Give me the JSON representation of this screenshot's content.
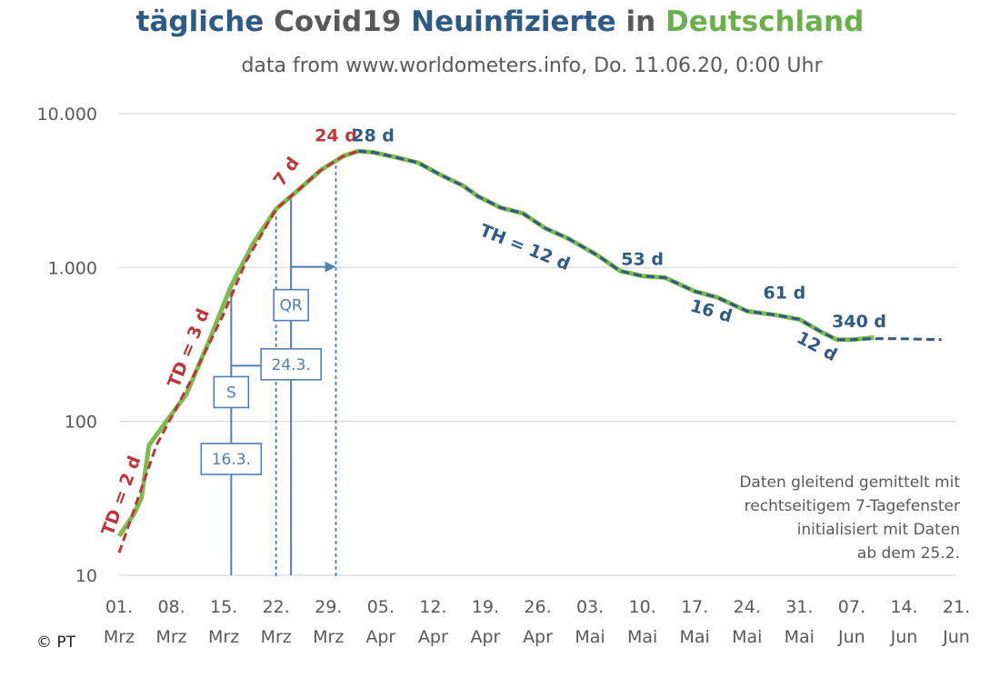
{
  "title": {
    "part1": "tägliche ",
    "part2": "Covid19 ",
    "part3": "Neuinfizierte",
    "part4": " in ",
    "part5": "Deutschland",
    "colors": {
      "blue": "#2e5a87",
      "gray": "#595959",
      "green": "#6ab04c"
    }
  },
  "subtitle": "data from www.worldometers.info, Do. 11.06.20, 0:00 Uhr",
  "copyright": "© PT",
  "note_lines": [
    "Daten gleitend gemittelt mit",
    "rechtseitigem 7-Tagefenster",
    "initialisiert mit Daten",
    "ab dem 25.2."
  ],
  "chart_data": {
    "type": "line",
    "y_scale": "log",
    "ylim": [
      10,
      10000
    ],
    "yticks": [
      10,
      100,
      1000,
      10000
    ],
    "ytick_labels": [
      "10",
      "100",
      "1.000",
      "10.000"
    ],
    "x_start": "2020-03-01",
    "x_end": "2020-06-21",
    "xtick_labels": [
      [
        "01.",
        "Mrz"
      ],
      [
        "08.",
        "Mrz"
      ],
      [
        "15.",
        "Mrz"
      ],
      [
        "22.",
        "Mrz"
      ],
      [
        "29.",
        "Mrz"
      ],
      [
        "05.",
        "Apr"
      ],
      [
        "12.",
        "Apr"
      ],
      [
        "19.",
        "Apr"
      ],
      [
        "26.",
        "Apr"
      ],
      [
        "03.",
        "Mai"
      ],
      [
        "10.",
        "Mai"
      ],
      [
        "17.",
        "Mai"
      ],
      [
        "24.",
        "Mai"
      ],
      [
        "31.",
        "Mai"
      ],
      [
        "07.",
        "Jun"
      ],
      [
        "14.",
        "Jun"
      ],
      [
        "21.",
        "Jun"
      ]
    ],
    "grid": true,
    "series": [
      {
        "color": "#7dbb4e",
        "style": "solid",
        "x": [
          "2020-03-01",
          "2020-03-03",
          "2020-03-04",
          "2020-03-05",
          "2020-03-07",
          "2020-03-10",
          "2020-03-13",
          "2020-03-16",
          "2020-03-19",
          "2020-03-22",
          "2020-03-25",
          "2020-03-28",
          "2020-03-31",
          "2020-04-02",
          "2020-04-04",
          "2020-04-07",
          "2020-04-10",
          "2020-04-13",
          "2020-04-16",
          "2020-04-18",
          "2020-04-21",
          "2020-04-24",
          "2020-04-27",
          "2020-04-30",
          "2020-05-04",
          "2020-05-07",
          "2020-05-10",
          "2020-05-13",
          "2020-05-17",
          "2020-05-20",
          "2020-05-24",
          "2020-05-28",
          "2020-05-31",
          "2020-06-03",
          "2020-06-05",
          "2020-06-07",
          "2020-06-10"
        ],
        "y": [
          18,
          25,
          32,
          70,
          95,
          150,
          330,
          760,
          1450,
          2400,
          3200,
          4300,
          5300,
          5700,
          5600,
          5200,
          4800,
          4000,
          3400,
          2900,
          2450,
          2250,
          1800,
          1550,
          1200,
          950,
          880,
          860,
          700,
          640,
          520,
          490,
          460,
          380,
          340,
          340,
          350
        ]
      },
      {
        "color": "#c0353a",
        "style": "dashed",
        "x": [
          "2020-03-01",
          "2020-03-06",
          "2020-03-11",
          "2020-03-15",
          "2020-03-18",
          "2020-03-22",
          "2020-03-25",
          "2020-03-28",
          "2020-03-31",
          "2020-04-02"
        ],
        "y": [
          14,
          70,
          200,
          500,
          1100,
          2400,
          3200,
          4300,
          5300,
          5700
        ]
      },
      {
        "color": "#2e5a87",
        "style": "dashed",
        "x": [
          "2020-04-02",
          "2020-04-04",
          "2020-04-07",
          "2020-04-10",
          "2020-04-13",
          "2020-04-16",
          "2020-04-18",
          "2020-04-21",
          "2020-04-24",
          "2020-04-27",
          "2020-04-30",
          "2020-05-04",
          "2020-05-07",
          "2020-05-10",
          "2020-05-13",
          "2020-05-17",
          "2020-05-20",
          "2020-05-24",
          "2020-05-28",
          "2020-05-31",
          "2020-06-03",
          "2020-06-05",
          "2020-06-07",
          "2020-06-10",
          "2020-06-13",
          "2020-06-19"
        ],
        "y": [
          5700,
          5600,
          5200,
          4800,
          4000,
          3400,
          2900,
          2450,
          2250,
          1800,
          1550,
          1200,
          950,
          880,
          860,
          700,
          640,
          520,
          490,
          460,
          380,
          340,
          340,
          345,
          345,
          340
        ]
      }
    ],
    "vlines": [
      {
        "date": "2020-03-16",
        "style": "solid",
        "color": "#4f7fb5",
        "y_top": 800
      },
      {
        "date": "2020-03-22",
        "style": "dotted",
        "color": "#4f7fb5",
        "y_top": 2400
      },
      {
        "date": "2020-03-24",
        "style": "solid",
        "color": "#4f7fb5",
        "y_top": 3000
      },
      {
        "date": "2020-03-30",
        "style": "dotted",
        "color": "#4f7fb5",
        "y_top": 5300
      }
    ],
    "annotations": [
      {
        "text": "TD = 2 d",
        "color": "#c0353a",
        "date": "2020-03-02",
        "y": 32,
        "rotate": -70
      },
      {
        "text": "TD = 3 d",
        "color": "#c0353a",
        "date": "2020-03-11",
        "y": 290,
        "rotate": -68
      },
      {
        "text": "7 d",
        "color": "#c0353a",
        "date": "2020-03-24",
        "y": 4000,
        "rotate": -55
      },
      {
        "text": "24 d",
        "color": "#c0353a",
        "date": "2020-03-30",
        "y": 6600,
        "rotate": 0
      },
      {
        "text": "28 d",
        "color": "#2e5a87",
        "date": "2020-04-04",
        "y": 6600,
        "rotate": 0
      },
      {
        "text": "TH = 12 d",
        "color": "#2e5a87",
        "date": "2020-04-24",
        "y": 1250,
        "rotate": 22
      },
      {
        "text": "53 d",
        "color": "#2e5a87",
        "date": "2020-05-10",
        "y": 1040,
        "rotate": 0
      },
      {
        "text": "16 d",
        "color": "#2e5a87",
        "date": "2020-05-19",
        "y": 480,
        "rotate": 16
      },
      {
        "text": "61 d",
        "color": "#2e5a87",
        "date": "2020-05-29",
        "y": 630,
        "rotate": 0
      },
      {
        "text": "12 d",
        "color": "#2e5a87",
        "date": "2020-06-02",
        "y": 285,
        "rotate": 28
      },
      {
        "text": "340 d",
        "color": "#2e5a87",
        "date": "2020-06-08",
        "y": 410,
        "rotate": 0
      }
    ],
    "boxes": [
      {
        "text": "S",
        "date": "2020-03-16",
        "y": 155
      },
      {
        "text": "16.3.",
        "date": "2020-03-16",
        "y": 57
      },
      {
        "text": "QR",
        "date": "2020-03-24",
        "y": 570
      },
      {
        "text": "24.3.",
        "date": "2020-03-24",
        "y": 235
      }
    ],
    "arrows": [
      {
        "from": "2020-03-16",
        "to": "2020-03-22",
        "y": 230
      },
      {
        "from": "2020-03-24",
        "to": "2020-03-30",
        "y": 1010
      }
    ]
  }
}
